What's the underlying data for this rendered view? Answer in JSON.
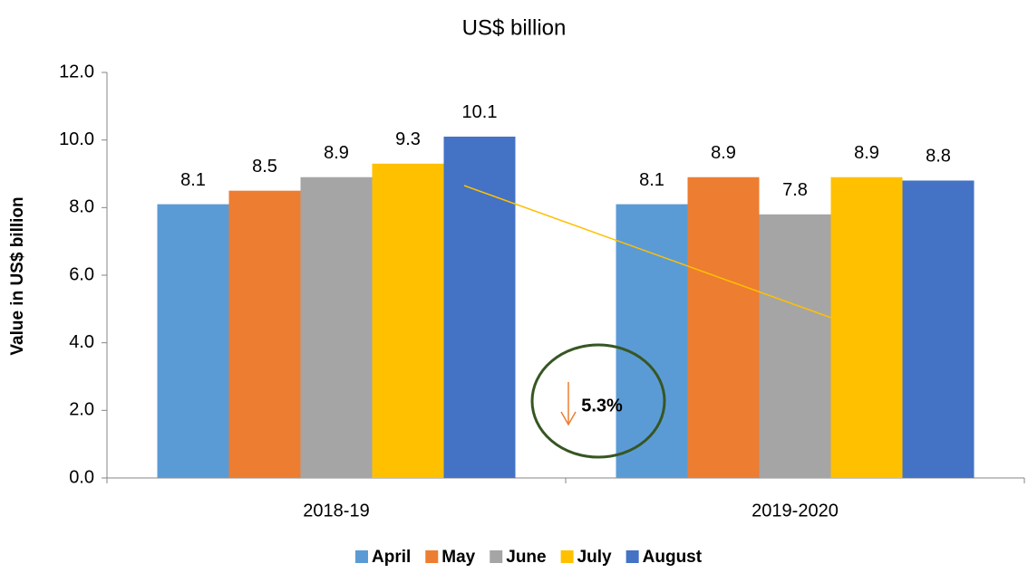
{
  "chart_data": {
    "type": "bar",
    "subtitle": "US$ billion",
    "y_label": "Value in US$ billion",
    "categories": [
      "2018-19",
      "2019-2020"
    ],
    "series": [
      {
        "name": "April",
        "color": "#5b9bd5",
        "values": [
          8.1,
          8.1
        ]
      },
      {
        "name": "May",
        "color": "#ed7d31",
        "values": [
          8.5,
          8.9
        ]
      },
      {
        "name": "June",
        "color": "#a5a5a5",
        "values": [
          8.9,
          7.8
        ]
      },
      {
        "name": "July",
        "color": "#ffc000",
        "values": [
          9.3,
          8.9
        ]
      },
      {
        "name": "August",
        "color": "#4472c4",
        "values": [
          10.1,
          8.8
        ]
      }
    ],
    "ylim": [
      0,
      12
    ],
    "yticks": [
      {
        "value": 0,
        "label": "0.0"
      },
      {
        "value": 2,
        "label": "2.0"
      },
      {
        "value": 4,
        "label": "4.0"
      },
      {
        "value": 6,
        "label": "6.0"
      },
      {
        "value": 8,
        "label": "8.0"
      },
      {
        "value": 10,
        "label": "10.0"
      },
      {
        "value": 12,
        "label": "12.0"
      }
    ],
    "annotation": "5.3%",
    "legend": "bottom"
  }
}
